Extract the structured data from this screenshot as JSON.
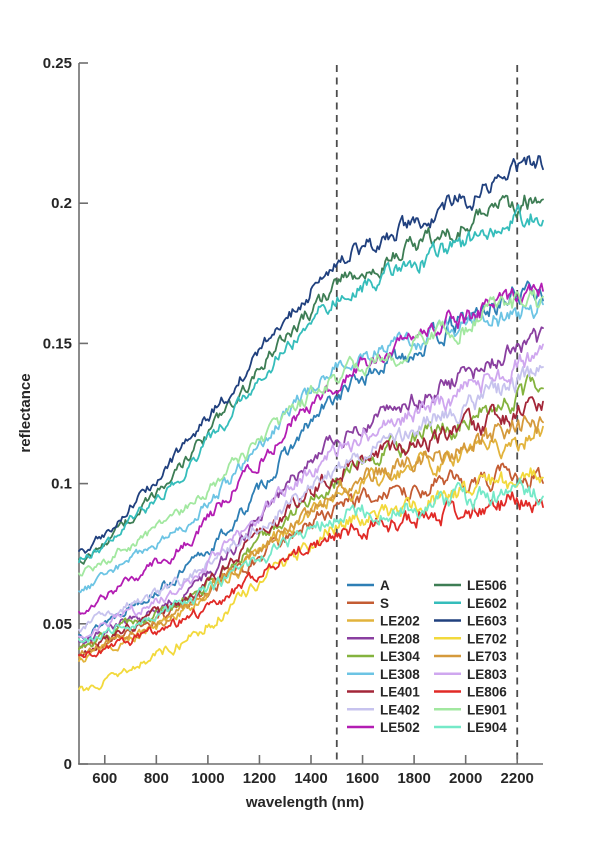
{
  "figure": {
    "background": "#ffffff"
  },
  "chart_data": {
    "type": "line",
    "title": "",
    "xlabel": "wavelength (nm)",
    "ylabel": "reflectance",
    "xlim": [
      500,
      2300
    ],
    "ylim": [
      0,
      0.25
    ],
    "xticks": [
      600,
      800,
      1000,
      1200,
      1400,
      1600,
      1800,
      2000,
      2200
    ],
    "yticks": [
      0,
      0.05,
      0.1,
      0.15,
      0.2,
      0.25
    ],
    "ytick_labels": [
      "0",
      "0.05",
      "0.1",
      "0.15",
      "0.2",
      "0.25"
    ],
    "dashed_vlines": [
      1500,
      2200
    ],
    "grid": false,
    "legend_position": "inside-lower-right",
    "legend_columns": 2,
    "colors": {
      "axis": "#6e6e6e",
      "tick_label": "#262626",
      "dashed_line": "#4d4d4d"
    },
    "x": [
      500,
      700,
      900,
      1100,
      1300,
      1500,
      1700,
      1900,
      2100,
      2300
    ],
    "series": [
      {
        "name": "A",
        "color": "#2e7fb5",
        "values": [
          0.046,
          0.057,
          0.068,
          0.086,
          0.11,
          0.131,
          0.143,
          0.153,
          0.163,
          0.171
        ]
      },
      {
        "name": "S",
        "color": "#c45c33",
        "values": [
          0.041,
          0.048,
          0.055,
          0.067,
          0.08,
          0.092,
          0.096,
          0.099,
          0.102,
          0.104
        ]
      },
      {
        "name": "LE202",
        "color": "#e2b33c",
        "values": [
          0.037,
          0.045,
          0.054,
          0.068,
          0.083,
          0.096,
          0.102,
          0.108,
          0.113,
          0.118
        ]
      },
      {
        "name": "LE208",
        "color": "#8a3fa0",
        "values": [
          0.043,
          0.052,
          0.06,
          0.077,
          0.098,
          0.117,
          0.126,
          0.134,
          0.143,
          0.15
        ]
      },
      {
        "name": "LE304",
        "color": "#84b33e",
        "values": [
          0.042,
          0.05,
          0.058,
          0.072,
          0.088,
          0.102,
          0.111,
          0.119,
          0.127,
          0.134
        ]
      },
      {
        "name": "LE308",
        "color": "#6cc4e4",
        "values": [
          0.062,
          0.073,
          0.085,
          0.103,
          0.124,
          0.142,
          0.148,
          0.154,
          0.159,
          0.164
        ]
      },
      {
        "name": "LE401",
        "color": "#a32638",
        "values": [
          0.04,
          0.049,
          0.058,
          0.073,
          0.09,
          0.104,
          0.111,
          0.117,
          0.122,
          0.127
        ]
      },
      {
        "name": "LE402",
        "color": "#c7c3ee",
        "values": [
          0.049,
          0.057,
          0.065,
          0.078,
          0.092,
          0.105,
          0.115,
          0.124,
          0.132,
          0.14
        ]
      },
      {
        "name": "LE502",
        "color": "#b31db3",
        "values": [
          0.055,
          0.066,
          0.078,
          0.098,
          0.119,
          0.136,
          0.147,
          0.156,
          0.163,
          0.169
        ]
      },
      {
        "name": "LE506",
        "color": "#3d7d54",
        "values": [
          0.072,
          0.088,
          0.107,
          0.129,
          0.152,
          0.171,
          0.18,
          0.188,
          0.196,
          0.203
        ]
      },
      {
        "name": "LE602",
        "color": "#35bdbb",
        "values": [
          0.073,
          0.086,
          0.104,
          0.125,
          0.148,
          0.166,
          0.174,
          0.182,
          0.19,
          0.197
        ]
      },
      {
        "name": "LE603",
        "color": "#20407e",
        "values": [
          0.075,
          0.092,
          0.112,
          0.135,
          0.158,
          0.178,
          0.188,
          0.197,
          0.206,
          0.215
        ]
      },
      {
        "name": "LE702",
        "color": "#f2d93c",
        "values": [
          0.026,
          0.035,
          0.044,
          0.057,
          0.072,
          0.085,
          0.09,
          0.095,
          0.099,
          0.103
        ]
      },
      {
        "name": "LE703",
        "color": "#d59a3c",
        "values": [
          0.039,
          0.047,
          0.055,
          0.069,
          0.084,
          0.098,
          0.105,
          0.111,
          0.117,
          0.122
        ]
      },
      {
        "name": "LE803",
        "color": "#cfa7ef",
        "values": [
          0.046,
          0.054,
          0.063,
          0.08,
          0.097,
          0.112,
          0.121,
          0.129,
          0.137,
          0.144
        ]
      },
      {
        "name": "LE806",
        "color": "#e12a26",
        "values": [
          0.038,
          0.044,
          0.051,
          0.062,
          0.073,
          0.082,
          0.086,
          0.089,
          0.092,
          0.095
        ]
      },
      {
        "name": "LE901",
        "color": "#a2e8a0",
        "values": [
          0.069,
          0.078,
          0.09,
          0.106,
          0.123,
          0.138,
          0.146,
          0.153,
          0.16,
          0.166
        ]
      },
      {
        "name": "LE904",
        "color": "#75e9c8",
        "values": [
          0.044,
          0.05,
          0.057,
          0.067,
          0.078,
          0.088,
          0.091,
          0.093,
          0.095,
          0.097
        ]
      }
    ]
  }
}
